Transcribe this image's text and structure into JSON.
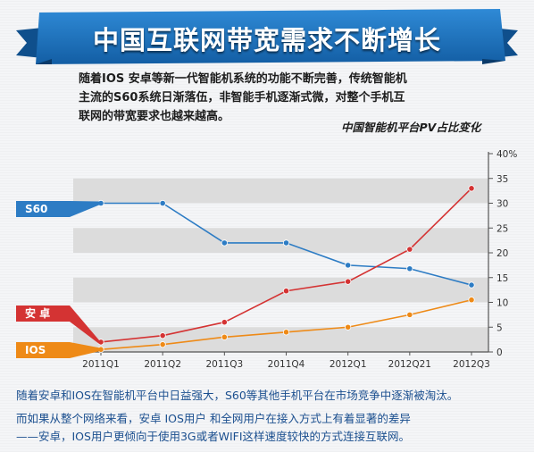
{
  "header": {
    "title": "中国互联网带宽需求不断增长"
  },
  "intro": {
    "line1": "随着IOS 安卓等新一代智能机系统的功能不断完善，传统智能机",
    "line2": "主流的S60系统日渐落伍，非智能手机逐渐式微，对整个手机互",
    "line3": "联网的带宽要求也越来越高。"
  },
  "footer": {
    "line1": "随着安卓和IOS在智能机平台中日益强大，S60等其他手机平台在市场竞争中逐渐被淘汰。",
    "line2": "而如果从整个网络来看，安卓 IOS用户 和全网用户在接入方式上有着显著的差异",
    "line3": "——安卓，IOS用户更倾向于使用3G或者WIFI这样速度较快的方式连接互联网。"
  },
  "colors": {
    "banner": "#1b6fb8",
    "s60": "#2d7cc4",
    "android": "#d43333",
    "ios": "#ee8a17"
  },
  "chart_data": {
    "type": "line",
    "title": "中国智能机平台PV占比变化",
    "categories": [
      "2011Q1",
      "2011Q2",
      "2011Q3",
      "2011Q4",
      "2012Q1",
      "2012Q21",
      "2012Q3"
    ],
    "ylim": [
      0,
      40
    ],
    "yticks": [
      "0",
      "5",
      "10",
      "15",
      "20",
      "25",
      "30",
      "35",
      "40%"
    ],
    "y_axis_position": "right",
    "grid": "alternating horizontal bands",
    "series": [
      {
        "name": "S60",
        "color": "#2d7cc4",
        "values": [
          30,
          30,
          22,
          22,
          17.5,
          16.8,
          13.5
        ]
      },
      {
        "name": "安 卓",
        "color": "#d43333",
        "values": [
          2,
          3.3,
          6,
          12.3,
          14.2,
          20.7,
          33
        ]
      },
      {
        "name": "IOS",
        "color": "#ee8a17",
        "values": [
          0.5,
          1.5,
          3,
          4,
          5,
          7.5,
          10.5
        ]
      }
    ]
  }
}
